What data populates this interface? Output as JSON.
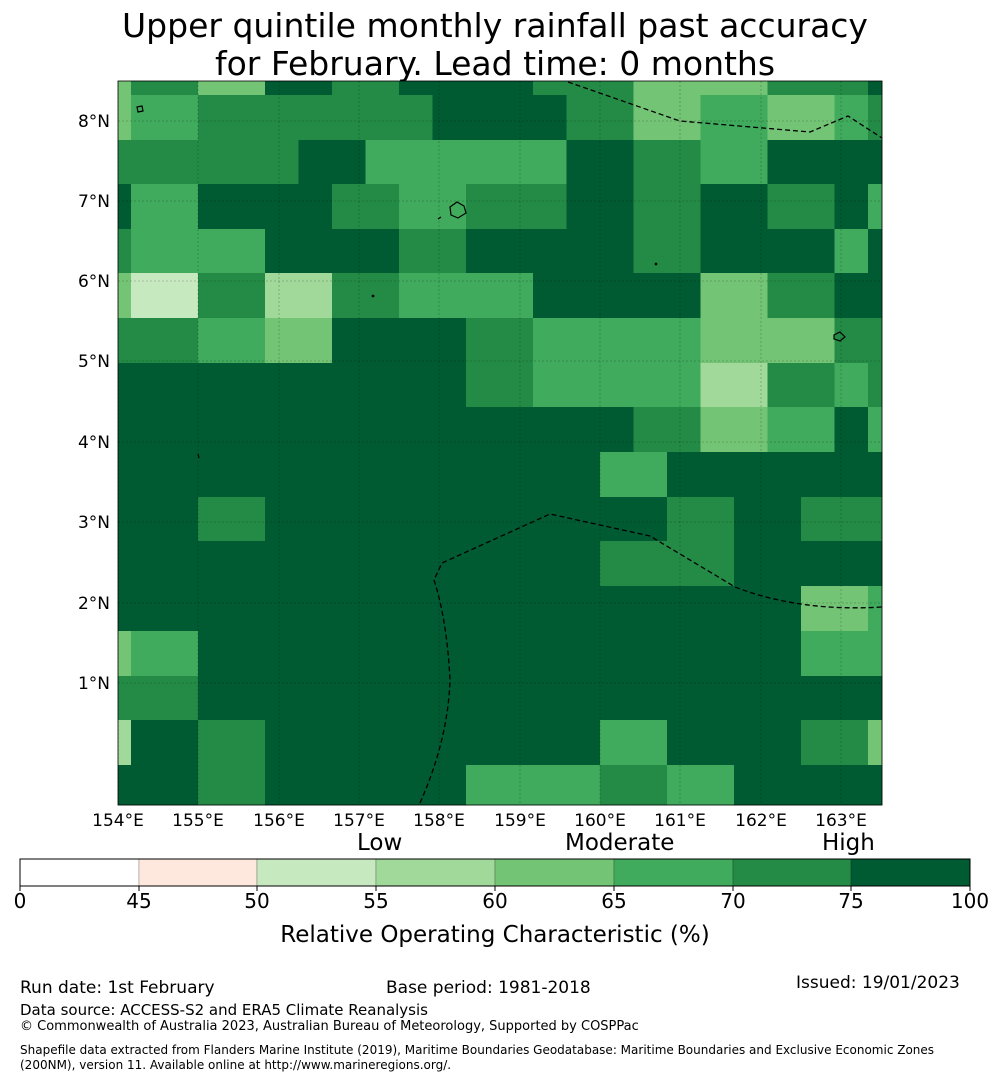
{
  "title": {
    "line1": "Upper quintile monthly rainfall past accuracy",
    "line2": "for February. Lead time: 0 months"
  },
  "map": {
    "lon_labels": [
      "154°E",
      "155°E",
      "156°E",
      "157°E",
      "158°E",
      "159°E",
      "160°E",
      "161°E",
      "162°E",
      "163°E"
    ],
    "lat_labels": [
      "8°N",
      "7°N",
      "6°N",
      "5°N",
      "4°N",
      "3°N",
      "2°N",
      "1°N"
    ],
    "bin_colors": [
      "#ffffff",
      "#fee8dd",
      "#c7e9c0",
      "#a1d99b",
      "#74c476",
      "#41ab5d",
      "#238b45",
      "#005a32"
    ],
    "grid_rows": [
      [
        4,
        6,
        6,
        4,
        4,
        7,
        7,
        6,
        6,
        7,
        7,
        7,
        7,
        6,
        6,
        6,
        4,
        4,
        4,
        4,
        6,
        6,
        6,
        7
      ],
      [
        4,
        5,
        5,
        6,
        6,
        6,
        6,
        6,
        6,
        6,
        7,
        7,
        7,
        7,
        6,
        6,
        4,
        4,
        5,
        5,
        4,
        4,
        5,
        6
      ],
      [
        6,
        6,
        6,
        6,
        6,
        6,
        7,
        7,
        5,
        5,
        5,
        5,
        5,
        5,
        7,
        7,
        6,
        6,
        5,
        5,
        7,
        7,
        7,
        7
      ],
      [
        7,
        5,
        5,
        7,
        7,
        7,
        7,
        6,
        6,
        5,
        5,
        6,
        6,
        6,
        7,
        7,
        6,
        6,
        7,
        7,
        6,
        6,
        7,
        5
      ],
      [
        6,
        5,
        5,
        5,
        5,
        7,
        7,
        7,
        7,
        6,
        6,
        7,
        7,
        7,
        7,
        7,
        6,
        6,
        7,
        7,
        7,
        7,
        5,
        7
      ],
      [
        4,
        2,
        2,
        6,
        6,
        3,
        3,
        6,
        6,
        5,
        5,
        5,
        5,
        7,
        7,
        7,
        7,
        7,
        4,
        4,
        6,
        6,
        7,
        7
      ],
      [
        6,
        6,
        6,
        5,
        5,
        4,
        4,
        7,
        7,
        7,
        7,
        6,
        6,
        5,
        5,
        5,
        5,
        5,
        4,
        4,
        4,
        4,
        6,
        6
      ],
      [
        7,
        7,
        7,
        7,
        7,
        7,
        7,
        7,
        7,
        7,
        7,
        6,
        6,
        5,
        5,
        5,
        5,
        5,
        3,
        3,
        6,
        6,
        5,
        6
      ],
      [
        7,
        7,
        7,
        7,
        7,
        7,
        7,
        7,
        7,
        7,
        7,
        7,
        7,
        7,
        7,
        7,
        6,
        6,
        4,
        4,
        5,
        5,
        7,
        5
      ],
      [
        7,
        7,
        7,
        7,
        7,
        7,
        7,
        7,
        7,
        7,
        7,
        7,
        7,
        7,
        7,
        5,
        5,
        7,
        7,
        7,
        7,
        7,
        7,
        7
      ],
      [
        7,
        7,
        7,
        6,
        6,
        7,
        7,
        7,
        7,
        7,
        7,
        7,
        7,
        7,
        7,
        7,
        7,
        6,
        6,
        7,
        7,
        6,
        6,
        6
      ],
      [
        7,
        7,
        7,
        7,
        7,
        7,
        7,
        7,
        7,
        7,
        7,
        7,
        7,
        7,
        7,
        6,
        6,
        6,
        6,
        7,
        7,
        7,
        7,
        7
      ],
      [
        7,
        7,
        7,
        7,
        7,
        7,
        7,
        7,
        7,
        7,
        7,
        7,
        7,
        7,
        7,
        7,
        7,
        7,
        7,
        7,
        7,
        4,
        4,
        5
      ],
      [
        4,
        5,
        5,
        7,
        7,
        7,
        7,
        7,
        7,
        7,
        7,
        7,
        7,
        7,
        7,
        7,
        7,
        7,
        7,
        7,
        7,
        5,
        5,
        5
      ],
      [
        6,
        6,
        6,
        7,
        7,
        7,
        7,
        7,
        7,
        7,
        7,
        7,
        7,
        7,
        7,
        7,
        7,
        7,
        7,
        7,
        7,
        7,
        7,
        7
      ],
      [
        3,
        7,
        7,
        6,
        6,
        7,
        7,
        7,
        7,
        7,
        7,
        7,
        7,
        7,
        7,
        5,
        5,
        7,
        7,
        7,
        7,
        6,
        6,
        4
      ],
      [
        7,
        7,
        7,
        6,
        6,
        7,
        7,
        7,
        7,
        7,
        7,
        5,
        5,
        5,
        5,
        6,
        6,
        5,
        5,
        7,
        7,
        7,
        7,
        7
      ]
    ]
  },
  "legend": {
    "category_low": "Low",
    "category_moderate": "Moderate",
    "category_high": "High",
    "ticks": [
      "0",
      "45",
      "50",
      "55",
      "60",
      "65",
      "70",
      "75",
      "100"
    ],
    "axis_label": "Relative Operating Characteristic (%)"
  },
  "footer": {
    "run_date": "Run date: 1st February",
    "base_period": "Base period: 1981-2018",
    "issued": "Issued: 19/01/2023",
    "data_source": "Data source: ACCESS-S2 and ERA5 Climate Reanalysis",
    "copyright": "© Commonwealth of Australia 2023, Australian Bureau of Meteorology, Supported by COSPPac",
    "shapefile_line1": "Shapefile data extracted from Flanders Marine Institute (2019), Maritime Boundaries Geodatabase: Maritime Boundaries and Exclusive Economic Zones",
    "shapefile_line2": "(200NM), version 11. Available online at http://www.marineregions.org/."
  }
}
